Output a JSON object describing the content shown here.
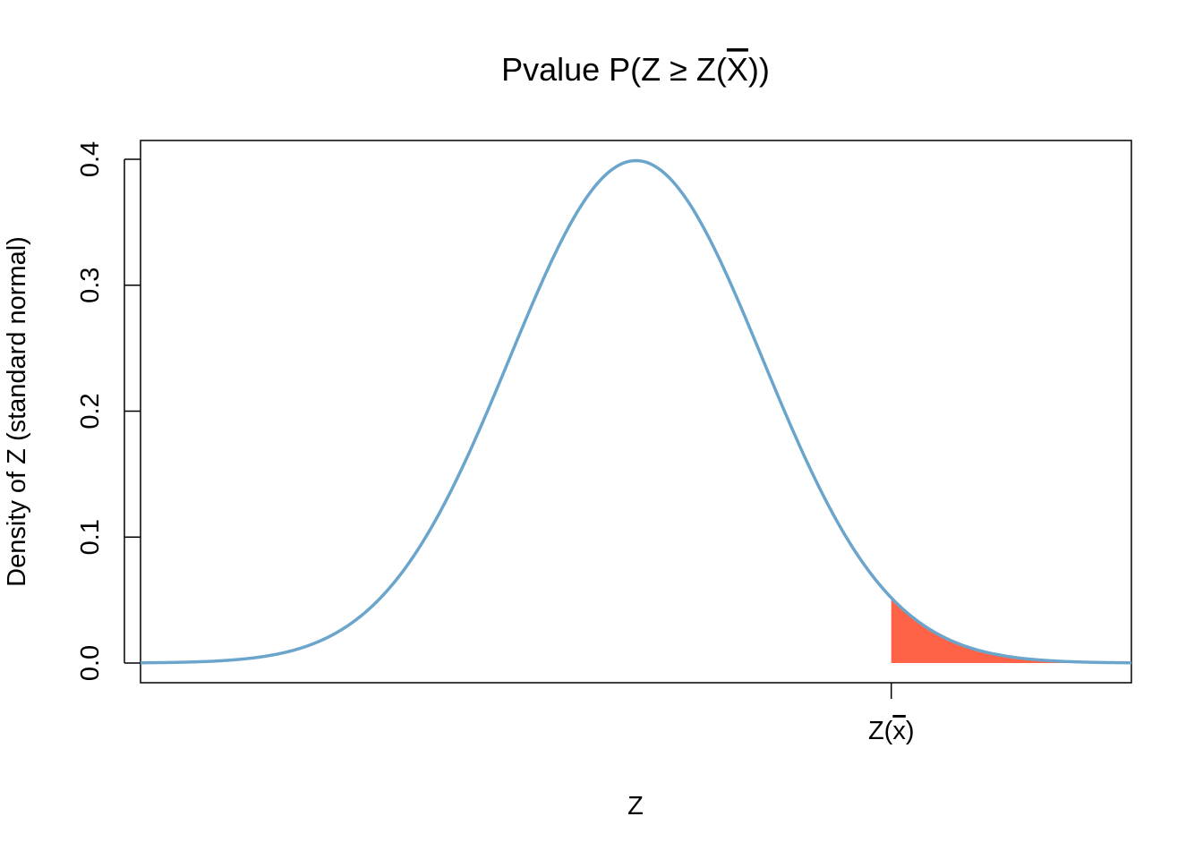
{
  "chart_data": {
    "type": "area",
    "title": "Pvalue P(Z ≥ Z(X))",
    "title_parts": {
      "prefix": "Pvalue P(Z ≥ Z(",
      "overlined": "X",
      "suffix": "))"
    },
    "xlabel": "Z",
    "ylabel": "Density of Z (standard normal)",
    "xlim": [
      -3.92,
      3.92
    ],
    "ylim": [
      0,
      0.4
    ],
    "y_ticks": [
      0.0,
      0.1,
      0.2,
      0.3,
      0.4
    ],
    "y_tick_labels": [
      "0.0",
      "0.1",
      "0.2",
      "0.3",
      "0.4"
    ],
    "x_tick": {
      "value": 2.02,
      "label_parts": {
        "prefix": "Z(",
        "overlined": "x",
        "suffix": ")"
      }
    },
    "series": [
      {
        "kind": "curve",
        "function": "standard normal density",
        "mean": 0,
        "sd": 1
      }
    ],
    "shaded_region": {
      "from": 2.02,
      "to": 3.92,
      "meaning": "P(Z ≥ Z(x̄))"
    },
    "colors": {
      "curve": "#6BA5CC",
      "shade": "#FF6347",
      "axis": "#000000"
    },
    "grid": false,
    "legend": "none"
  }
}
